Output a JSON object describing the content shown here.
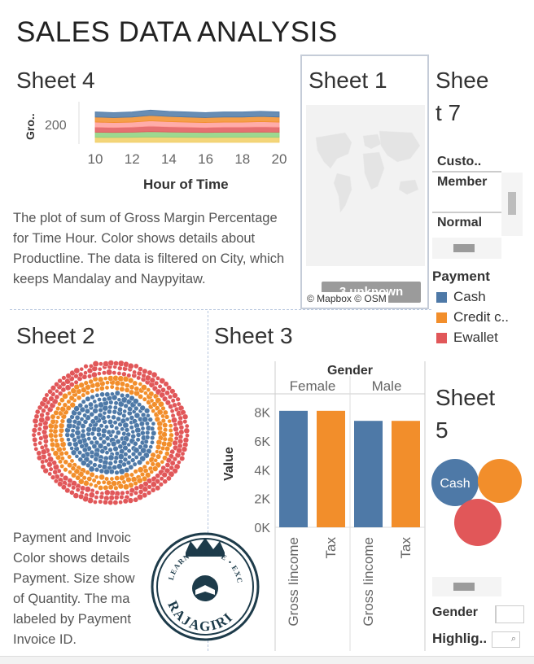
{
  "dashboard": {
    "title": "SALES DATA ANALYSIS"
  },
  "sheet4": {
    "title": "Sheet 4",
    "y_axis_label": "Gro..",
    "y_tick": "200",
    "x_ticks": [
      "10",
      "12",
      "14",
      "16",
      "18",
      "20"
    ],
    "x_axis_label": "Hour of Time",
    "caption": "The plot of sum of Gross Margin Percentage for Time Hour.  Color shows details about Productline. The data is filtered on City, which keeps Mandalay and Naypyitaw.",
    "colors": [
      "#f1ce63",
      "#8cd17d",
      "#e15759",
      "#ff9d9a",
      "#f28e2b",
      "#4e79a7"
    ]
  },
  "sheet1": {
    "title": "Sheet 1",
    "badge": "3 unknown",
    "attribution": "© Mapbox © OSM"
  },
  "sheet7": {
    "title_line1": "Shee",
    "title_line2": "t 7",
    "column_header": "Custo..",
    "rows": [
      "Member",
      "Normal"
    ]
  },
  "payment_legend": {
    "title": "Payment",
    "items": [
      {
        "label": "Cash",
        "color": "#4e79a7"
      },
      {
        "label": "Credit c..",
        "color": "#f28e2b"
      },
      {
        "label": "Ewallet",
        "color": "#e15759"
      }
    ]
  },
  "sheet2": {
    "title": "Sheet 2",
    "caption_lines": [
      "Payment and Invoic",
      "Color shows details",
      "Payment.  Size show",
      "of Quantity.  The ma",
      "labeled by Payment",
      "Invoice ID."
    ]
  },
  "sheet3": {
    "title": "Sheet 3",
    "column_group": "Gender",
    "y_axis_label": "Value"
  },
  "sheet5": {
    "title_line1": "Sheet",
    "title_line2": "5",
    "bubble_label": "Cash"
  },
  "filters": {
    "gender_label": "Gender",
    "highlight_label": "Highlig.."
  },
  "logo": {
    "arc_text": "LEARN • SERVE • EXCEL",
    "name": "RAJAGIRI"
  },
  "chart_data": [
    {
      "type": "area",
      "title": "Sheet 4",
      "xlabel": "Hour of Time",
      "ylabel": "Gro..",
      "x": [
        10,
        11,
        12,
        13,
        14,
        15,
        16,
        17,
        18,
        19,
        20
      ],
      "xlim": [
        10,
        20
      ],
      "series": [
        {
          "values": [
            48,
            47,
            48,
            51,
            49,
            48,
            47,
            48,
            48,
            49,
            48
          ]
        },
        {
          "values": [
            48,
            47,
            48,
            51,
            49,
            48,
            47,
            48,
            48,
            49,
            48
          ]
        },
        {
          "values": [
            48,
            47,
            48,
            51,
            49,
            48,
            47,
            48,
            48,
            49,
            48
          ]
        },
        {
          "values": [
            48,
            47,
            48,
            51,
            49,
            48,
            47,
            48,
            48,
            49,
            48
          ]
        },
        {
          "values": [
            48,
            47,
            48,
            51,
            49,
            48,
            47,
            48,
            48,
            49,
            48
          ]
        },
        {
          "values": [
            48,
            47,
            48,
            51,
            49,
            48,
            47,
            48,
            48,
            49,
            48
          ]
        }
      ],
      "y_ticks": [
        200
      ],
      "legend": "none"
    },
    {
      "type": "bar",
      "title": "Sheet 3",
      "ylabel": "Value",
      "column_groups": [
        {
          "name": "Female",
          "categories": [
            "Gross Iincome",
            "Tax"
          ],
          "values": [
            8100,
            8100
          ]
        },
        {
          "name": "Male",
          "categories": [
            "Gross Iincome",
            "Tax"
          ],
          "values": [
            7400,
            7400
          ]
        }
      ],
      "bar_colors": [
        "#4e79a7",
        "#f28e2b"
      ],
      "ylim": [
        0,
        8600
      ],
      "y_ticks": [
        0,
        2000,
        4000,
        6000,
        8000
      ],
      "y_tick_labels": [
        "0K",
        "2K",
        "4K",
        "6K",
        "8K"
      ]
    },
    {
      "type": "scatter",
      "title": "Sheet 2",
      "series": [
        {
          "name": "Cash",
          "color": "#4e79a7"
        },
        {
          "name": "Credit c..",
          "color": "#f28e2b"
        },
        {
          "name": "Ewallet",
          "color": "#e15759"
        }
      ]
    }
  ]
}
